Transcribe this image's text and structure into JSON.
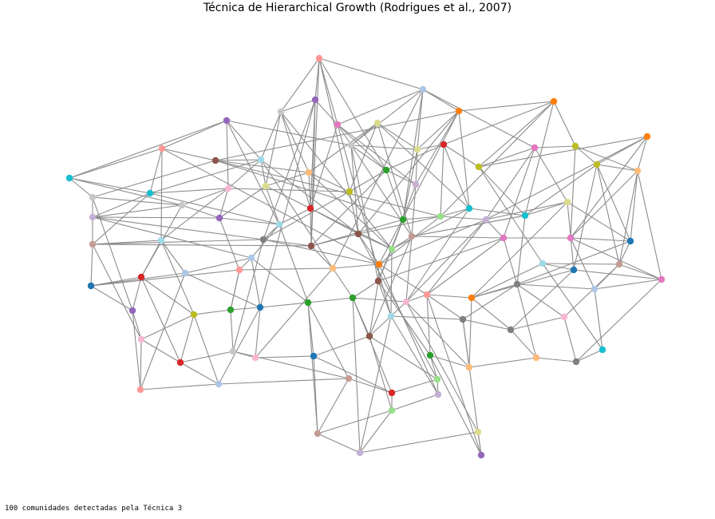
{
  "title": "Técnica de Hierarchical Growth (Rodrigues et al., 2007)",
  "caption": "100 comunidades detectadas pela Técnica 3",
  "edge_color": "#8c8c8c",
  "palette": [
    "#1f77b4",
    "#aec7e8",
    "#ff7f0e",
    "#ffbb78",
    "#2ca02c",
    "#98df8a",
    "#d62728",
    "#ff9896",
    "#9467bd",
    "#c5b0d5",
    "#8c564b",
    "#c49c94",
    "#e377c2",
    "#f7b6d2",
    "#7f7f7f",
    "#c7c7c7",
    "#bcbd22",
    "#dbdb8d",
    "#17becf",
    "#9edae5"
  ]
}
